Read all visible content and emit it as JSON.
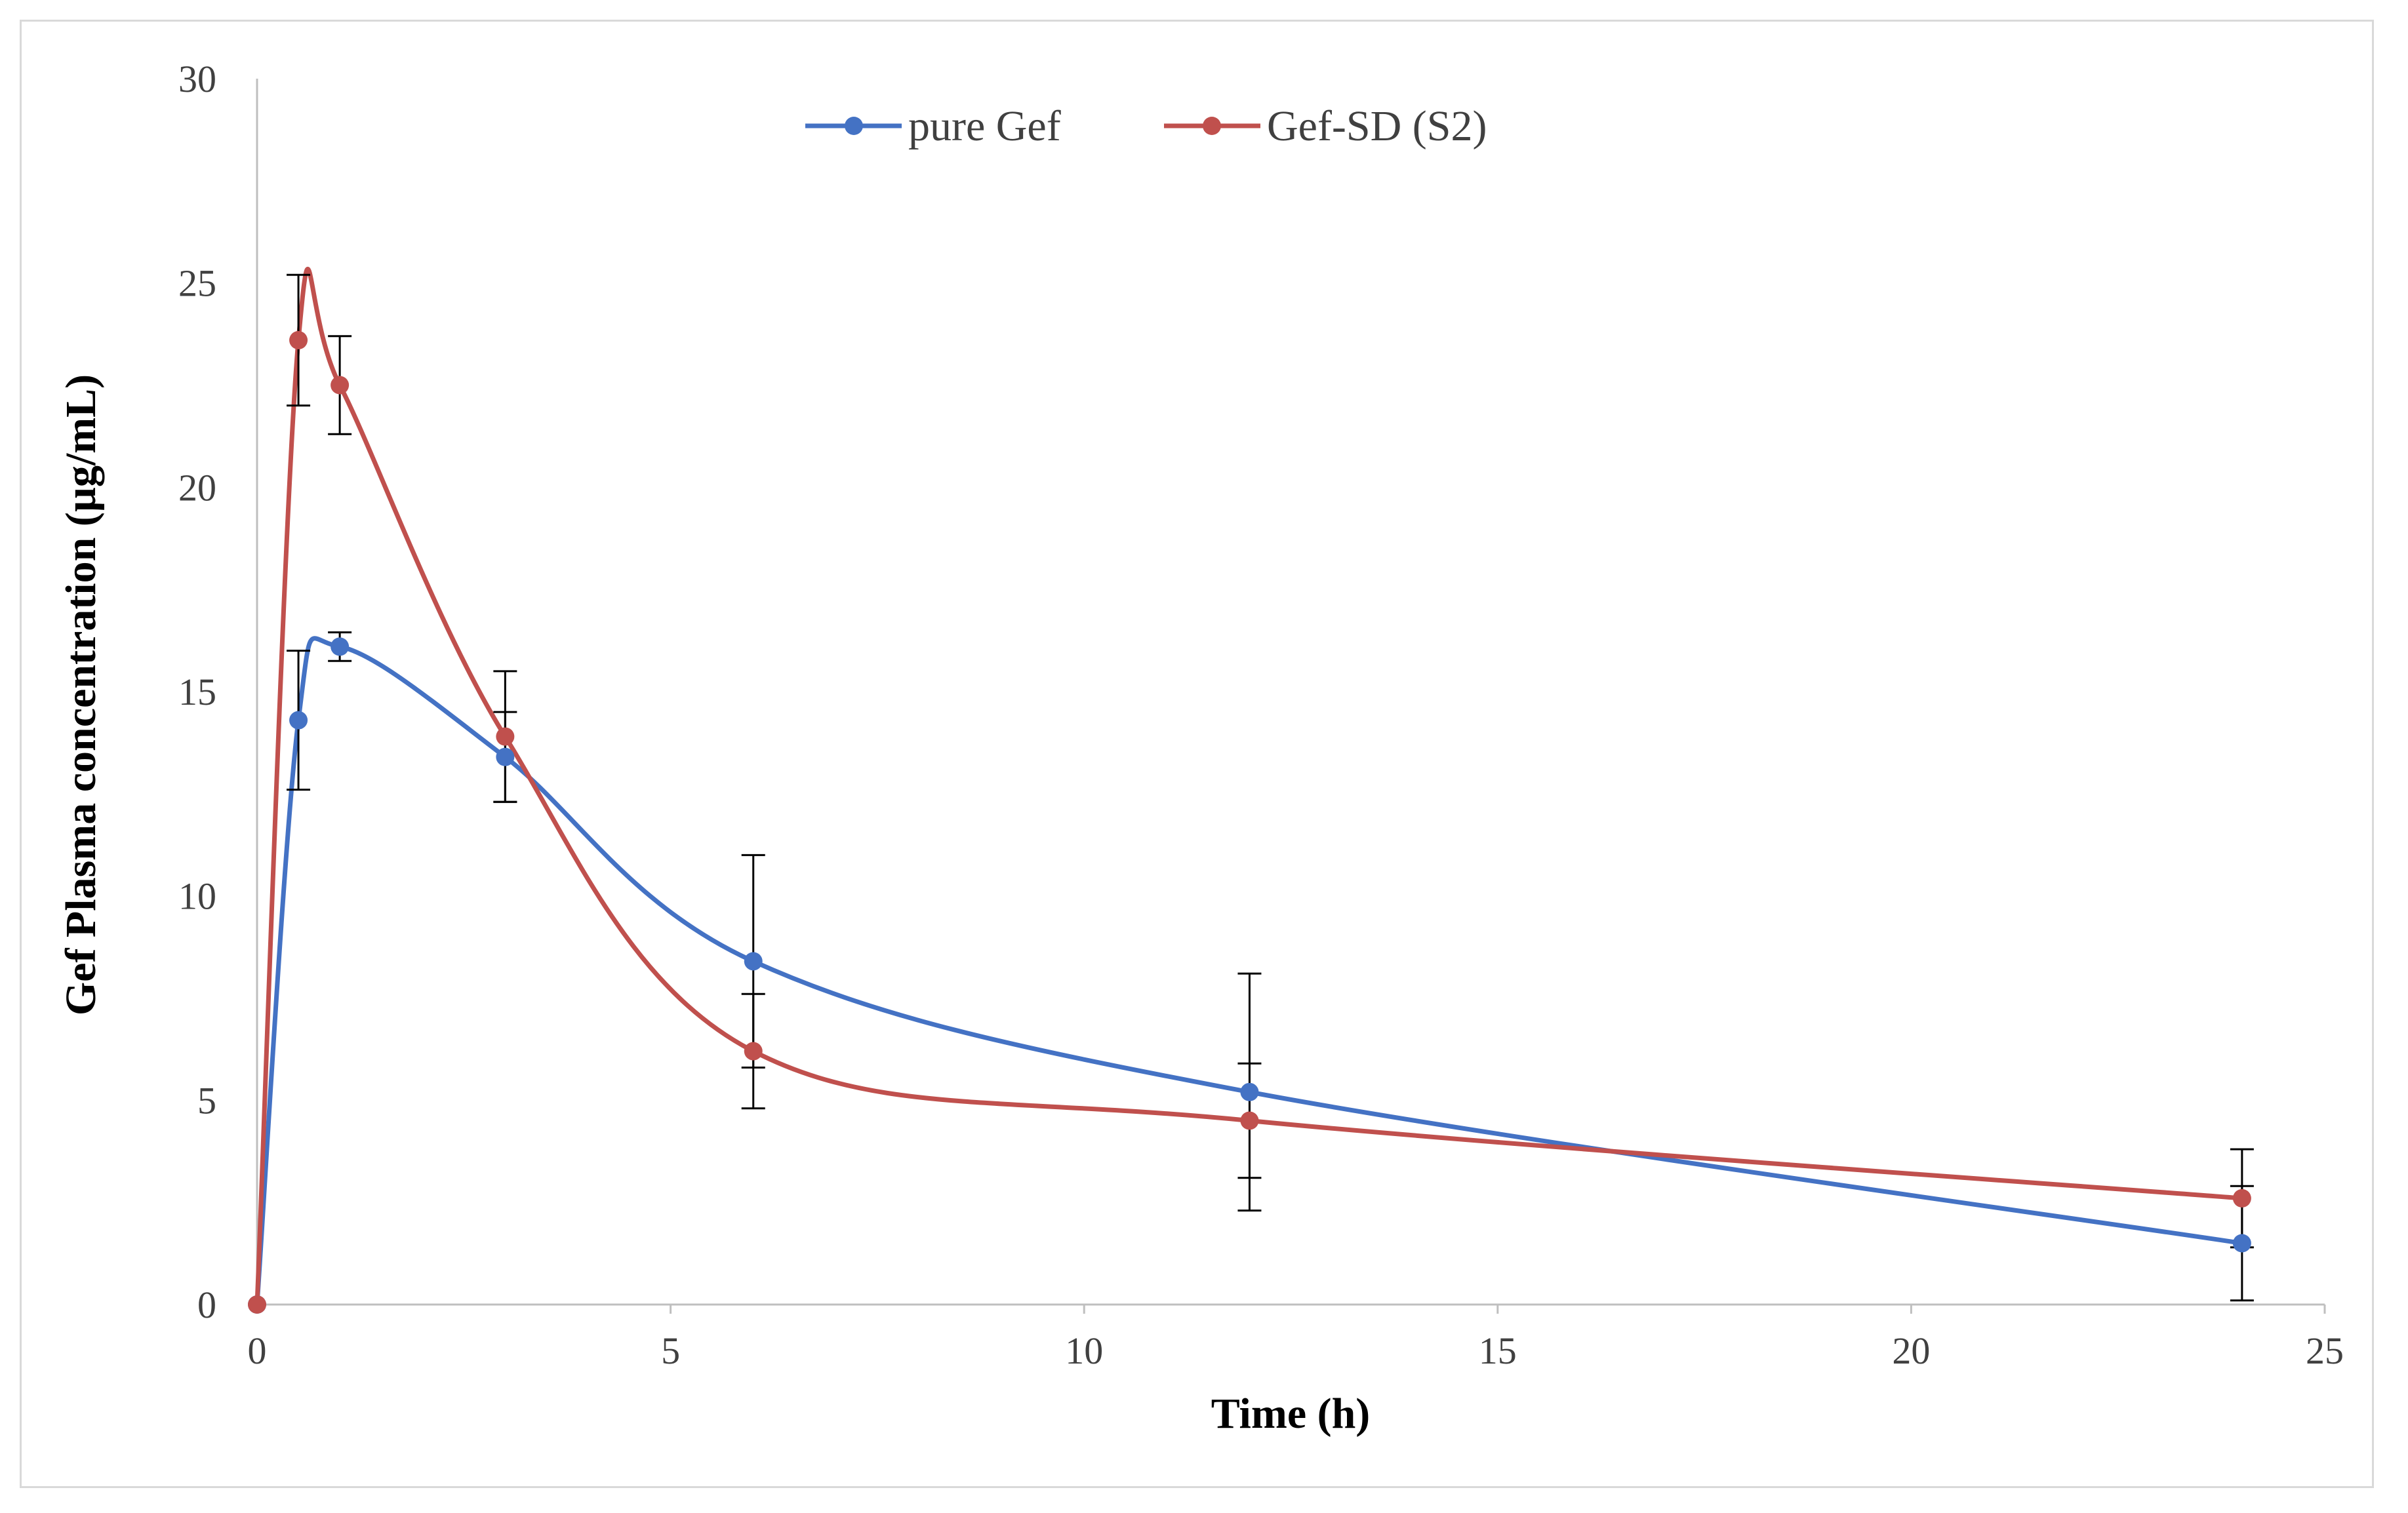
{
  "chart_data": {
    "type": "line",
    "title": "",
    "xlabel": "Time (h)",
    "ylabel": "Gef Plasma concentration  (µg/mL)",
    "xlim": [
      0,
      25
    ],
    "ylim": [
      0,
      30
    ],
    "x_ticks": [
      0,
      5,
      10,
      15,
      20,
      25
    ],
    "y_ticks": [
      0,
      5,
      10,
      15,
      20,
      25,
      30
    ],
    "grid": false,
    "legend_position": "top-center",
    "smooth": true,
    "series": [
      {
        "name": "pure Gef",
        "color": "#4472c4",
        "x": [
          0,
          0.5,
          1,
          3,
          6,
          12,
          24
        ],
        "y": [
          0,
          14.3,
          16.1,
          13.4,
          8.4,
          5.2,
          1.5
        ],
        "error": [
          0,
          1.7,
          0.35,
          1.1,
          2.6,
          2.9,
          1.4
        ]
      },
      {
        "name": "Gef-SD (S2)",
        "color": "#c0504d",
        "x": [
          0,
          0.5,
          1,
          3,
          6,
          12,
          24
        ],
        "y": [
          0,
          23.6,
          22.5,
          13.9,
          6.2,
          4.5,
          2.6
        ],
        "error": [
          0,
          1.6,
          1.2,
          1.6,
          1.4,
          1.4,
          1.2
        ]
      }
    ],
    "error_bar_color": "#000000"
  }
}
